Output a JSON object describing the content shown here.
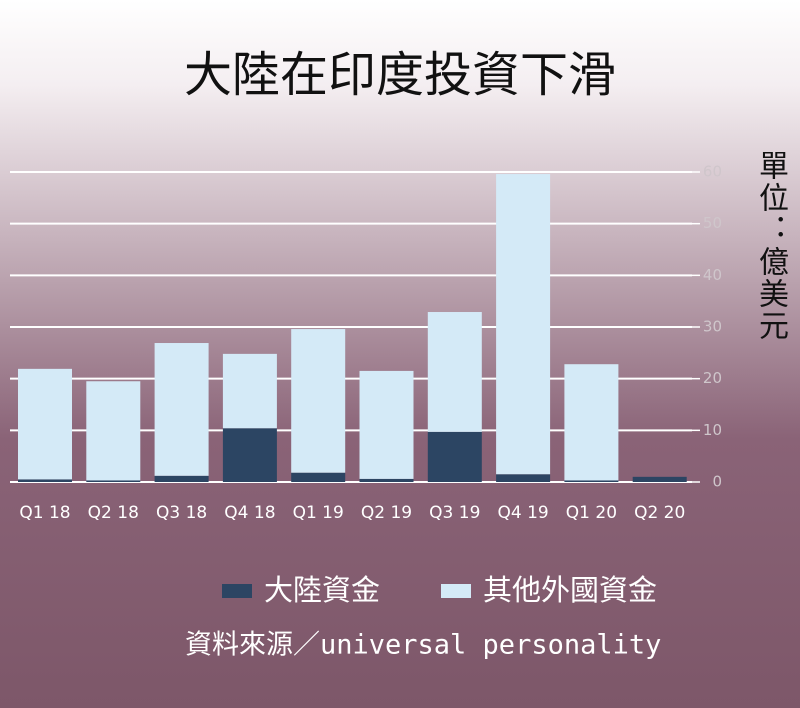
{
  "chart_data": {
    "type": "stacked_bar",
    "title": "大陸在印度投資下滑",
    "unit_label": "單位：億美元",
    "categories": [
      "Q1 18",
      "Q2 18",
      "Q3 18",
      "Q4 18",
      "Q1 19",
      "Q2 19",
      "Q3 19",
      "Q4 19",
      "Q1 20",
      "Q2 20"
    ],
    "series": [
      {
        "name": "大陸資金",
        "color": "#2c4563",
        "values": [
          0.5,
          0.3,
          1.2,
          10.4,
          1.8,
          0.6,
          9.7,
          1.5,
          0.3,
          1.0
        ]
      },
      {
        "name": "其他外國資金",
        "color": "#d4eaf7",
        "values": [
          21.4,
          19.2,
          25.7,
          14.4,
          27.8,
          20.9,
          23.2,
          58.1,
          22.5,
          0
        ]
      }
    ],
    "ylim": [
      0,
      60
    ],
    "yticks": [
      0,
      10,
      20,
      30,
      40,
      50,
      60
    ],
    "grid": true,
    "source": "資料來源／universal personality"
  }
}
